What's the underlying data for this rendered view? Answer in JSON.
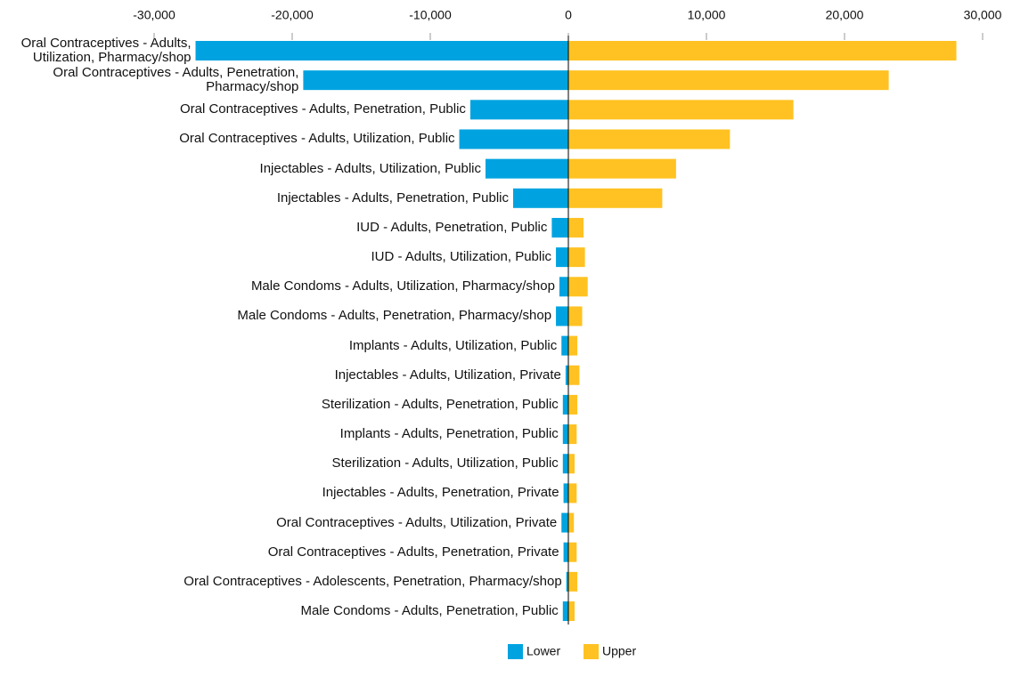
{
  "chart_data": {
    "type": "tornado",
    "categories": [
      "Oral Contraceptives - Adults, Utilization, Pharmacy/shop",
      "Oral Contraceptives - Adults, Penetration, Pharmacy/shop",
      "Oral Contraceptives - Adults, Penetration, Public",
      "Oral Contraceptives - Adults, Utilization, Public",
      "Injectables - Adults, Utilization, Public",
      "Injectables - Adults, Penetration, Public",
      "IUD - Adults, Penetration, Public",
      "IUD - Adults, Utilization, Public",
      "Male Condoms - Adults, Utilization, Pharmacy/shop",
      "Male Condoms - Adults, Penetration, Pharmacy/shop",
      "Implants - Adults, Utilization, Public",
      "Injectables - Adults, Utilization, Private",
      "Sterilization - Adults, Penetration, Public",
      "Implants - Adults, Penetration, Public",
      "Sterilization - Adults, Utilization, Public",
      "Injectables - Adults, Penetration, Private",
      "Oral Contraceptives - Adults, Utilization, Private",
      "Oral Contraceptives - Adults, Penetration, Private",
      "Oral Contraceptives - Adolescents, Penetration, Pharmacy/shop",
      "Male Condoms - Adults, Penetration, Public"
    ],
    "series": [
      {
        "name": "Lower",
        "color": "#00a3e0",
        "values": [
          -27000,
          -19200,
          -7100,
          -7900,
          -6000,
          -4000,
          -1200,
          -900,
          -650,
          -900,
          -500,
          -200,
          -400,
          -400,
          -400,
          -350,
          -500,
          -350,
          -150,
          -400
        ]
      },
      {
        "name": "Upper",
        "color": "#ffc222",
        "values": [
          28100,
          23200,
          16300,
          11700,
          7800,
          6800,
          1100,
          1200,
          1400,
          1000,
          650,
          800,
          650,
          600,
          450,
          600,
          400,
          600,
          650,
          450
        ]
      }
    ],
    "xlim": [
      -30000,
      30000
    ],
    "xticks": [
      {
        "value": -30000,
        "label": "-30,000"
      },
      {
        "value": -20000,
        "label": "-20,000"
      },
      {
        "value": -10000,
        "label": "-10,000"
      },
      0,
      {
        "value": 10000,
        "label": "10,000"
      },
      {
        "value": 20000,
        "label": "20,000"
      },
      {
        "value": 30000,
        "label": "30,000"
      }
    ]
  }
}
